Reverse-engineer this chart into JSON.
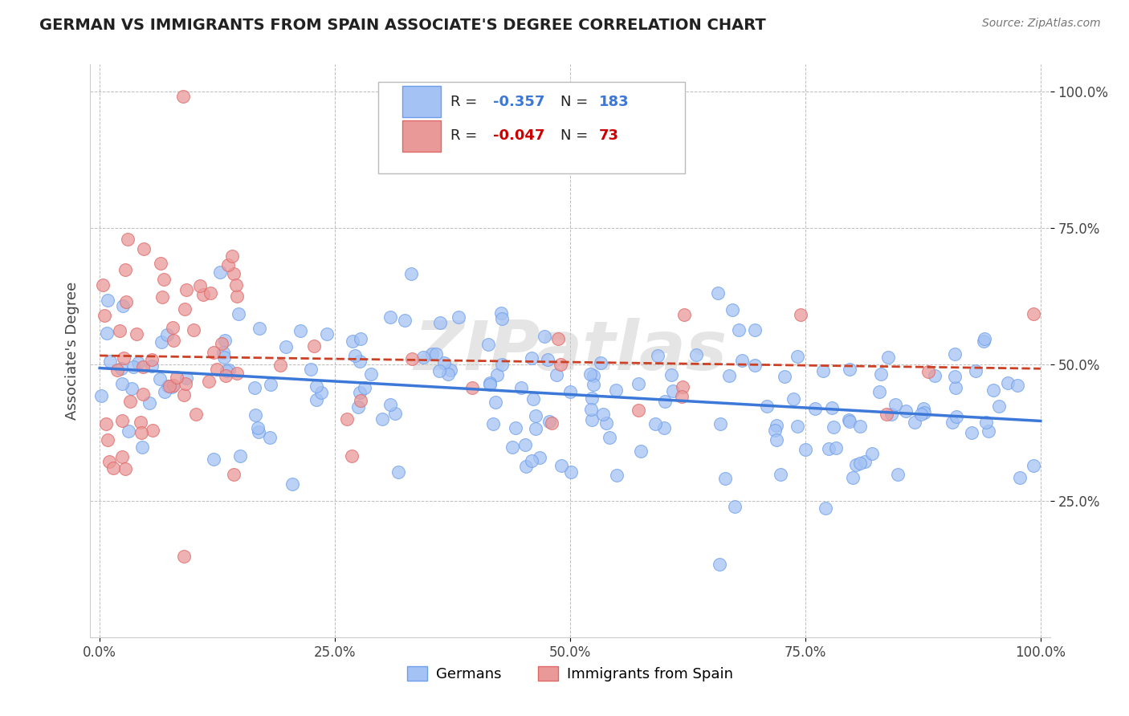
{
  "title": "GERMAN VS IMMIGRANTS FROM SPAIN ASSOCIATE'S DEGREE CORRELATION CHART",
  "source_text": "Source: ZipAtlas.com",
  "ylabel": "Associate's Degree",
  "x_tick_labels": [
    "0.0%",
    "25.0%",
    "50.0%",
    "75.0%",
    "100.0%"
  ],
  "y_tick_labels_right": [
    "25.0%",
    "50.0%",
    "75.0%",
    "100.0%"
  ],
  "legend_label_1": "Germans",
  "legend_label_2": "Immigrants from Spain",
  "r1": -0.357,
  "n1": 183,
  "r2": -0.047,
  "n2": 73,
  "color_blue": "#a4c2f4",
  "color_blue_edge": "#6d9eeb",
  "color_pink": "#ea9999",
  "color_pink_edge": "#e06666",
  "color_blue_line": "#3c78d8",
  "color_pink_line": "#cc4125",
  "background": "#ffffff",
  "grid_color": "#b7b7b7",
  "watermark": "ZIPatlas",
  "title_color": "#212121",
  "source_color": "#757575"
}
